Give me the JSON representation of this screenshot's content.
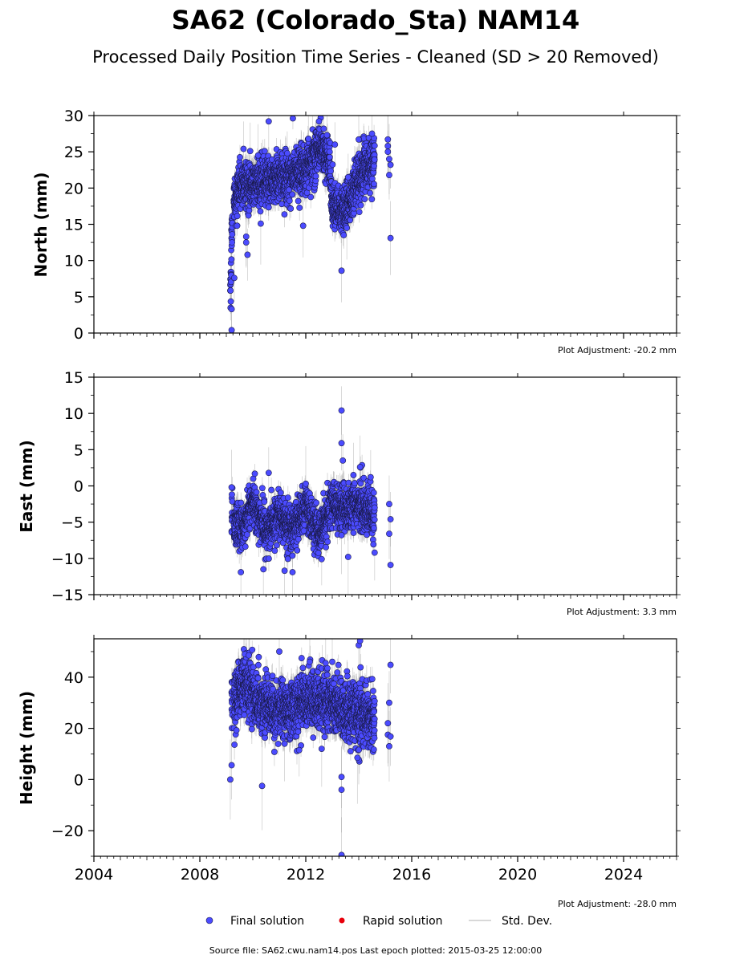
{
  "title": "SA62 (Colorado_Sta) NAM14",
  "subtitle": "Processed Daily Position Time Series - Cleaned (SD > 20 Removed)",
  "footer": "Source file: SA62.cwu.nam14.pos  Last epoch plotted: 2015-03-25 12:00:00",
  "legend": {
    "final": "Final solution",
    "rapid": "Rapid solution",
    "std": "Std. Dev.",
    "final_color": "#4b4bff",
    "rapid_color": "#e8000b",
    "std_color": "#cccccc"
  },
  "colors": {
    "point_fill": "#4b4bff",
    "point_edge": "#1a1a4a",
    "errorbar": "#999999"
  },
  "chart_data": [
    {
      "type": "scatter",
      "ylabel": "North (mm)",
      "adjustment": "Plot Adjustment: -20.2 mm",
      "xlim": [
        2004,
        2026
      ],
      "ylim": [
        0,
        30
      ],
      "yticks": [
        0,
        5,
        10,
        15,
        20,
        25,
        30
      ],
      "xticks": [
        2004,
        2008,
        2012,
        2016,
        2020,
        2024
      ],
      "show_xtick_labels": false,
      "trend": [
        [
          2009.15,
          5.5,
          1.6,
          1.3
        ],
        [
          2009.25,
          18.0,
          1.5,
          1.3
        ],
        [
          2009.5,
          20.0,
          1.5,
          1.4
        ],
        [
          2010.0,
          20.5,
          1.5,
          1.4
        ],
        [
          2010.5,
          21.0,
          1.5,
          1.4
        ],
        [
          2011.0,
          21.5,
          1.6,
          1.4
        ],
        [
          2011.5,
          22.0,
          1.6,
          1.4
        ],
        [
          2012.0,
          22.5,
          1.6,
          1.4
        ],
        [
          2012.5,
          26.0,
          1.6,
          1.4
        ],
        [
          2012.9,
          23.5,
          1.6,
          1.5
        ],
        [
          2013.0,
          17.5,
          1.6,
          1.5
        ],
        [
          2013.5,
          17.0,
          1.6,
          1.6
        ],
        [
          2013.9,
          20.5,
          1.6,
          1.6
        ],
        [
          2014.3,
          23.0,
          1.6,
          1.7
        ],
        [
          2014.6,
          24.0,
          1.6,
          1.7
        ]
      ],
      "points": [
        [
          2009.2,
          0.4
        ],
        [
          2009.2,
          3.3
        ],
        [
          2009.3,
          7.6
        ],
        [
          2009.8,
          10.8
        ],
        [
          2009.75,
          12.5
        ],
        [
          2009.75,
          13.3
        ],
        [
          2010.3,
          15.1
        ],
        [
          2010.6,
          29.2
        ],
        [
          2011.9,
          14.8
        ],
        [
          2013.35,
          8.6
        ],
        [
          2013.55,
          14.5
        ],
        [
          2014.0,
          26.7
        ],
        [
          2014.5,
          27.5
        ],
        [
          2012.5,
          29.2
        ],
        [
          2015.1,
          26.7
        ],
        [
          2015.1,
          25.8
        ],
        [
          2015.1,
          25.0
        ],
        [
          2015.15,
          24.0
        ],
        [
          2015.2,
          23.2
        ],
        [
          2015.15,
          21.8
        ],
        [
          2015.2,
          13.1
        ],
        [
          2009.65,
          25.4
        ],
        [
          2009.9,
          25.1
        ],
        [
          2010.2,
          24.5
        ],
        [
          2011.3,
          24.8
        ],
        [
          2012.1,
          26.8
        ],
        [
          2012.8,
          27.3
        ],
        [
          2013.1,
          26.0
        ],
        [
          2013.6,
          21.5
        ]
      ],
      "sd": {
        "min": 1.2,
        "max": 1.9
      }
    },
    {
      "type": "scatter",
      "ylabel": "East (mm)",
      "adjustment": "Plot Adjustment: 3.3 mm",
      "xlim": [
        2004,
        2026
      ],
      "ylim": [
        -15,
        15
      ],
      "yticks": [
        -15,
        -10,
        -5,
        0,
        5,
        10,
        15
      ],
      "xticks": [
        2004,
        2008,
        2012,
        2016,
        2020,
        2024
      ],
      "show_xtick_labels": false,
      "trend": [
        [
          2009.2,
          -4.5,
          1.5,
          1.3
        ],
        [
          2009.6,
          -6.0,
          1.5,
          1.3
        ],
        [
          2010.0,
          -2.0,
          1.5,
          1.3
        ],
        [
          2010.5,
          -6.5,
          1.5,
          1.3
        ],
        [
          2011.0,
          -4.0,
          1.5,
          1.3
        ],
        [
          2011.5,
          -6.0,
          1.5,
          1.3
        ],
        [
          2012.0,
          -3.0,
          1.5,
          1.3
        ],
        [
          2012.5,
          -6.5,
          1.5,
          1.3
        ],
        [
          2013.0,
          -2.5,
          1.5,
          1.4
        ],
        [
          2013.5,
          -3.0,
          1.6,
          1.4
        ],
        [
          2014.0,
          -2.5,
          1.6,
          1.5
        ],
        [
          2014.6,
          -4.5,
          1.6,
          1.6
        ]
      ],
      "points": [
        [
          2009.55,
          -11.9
        ],
        [
          2010.4,
          -11.5
        ],
        [
          2011.2,
          -11.7
        ],
        [
          2011.5,
          -11.9
        ],
        [
          2013.35,
          10.4
        ],
        [
          2013.35,
          5.9
        ],
        [
          2013.4,
          3.5
        ],
        [
          2013.6,
          -9.8
        ],
        [
          2013.35,
          -6.8
        ],
        [
          2014.6,
          -9.2
        ],
        [
          2015.2,
          -10.9
        ],
        [
          2015.15,
          -2.5
        ],
        [
          2015.15,
          -6.6
        ],
        [
          2015.2,
          -4.6
        ],
        [
          2010.6,
          1.8
        ],
        [
          2014.05,
          2.6
        ],
        [
          2012.6,
          -10.1
        ],
        [
          2014.45,
          1.2
        ],
        [
          2009.2,
          -0.2
        ],
        [
          2012.0,
          0.3
        ],
        [
          2013.8,
          1.5
        ]
      ],
      "sd": {
        "min": 1.2,
        "max": 1.8
      }
    },
    {
      "type": "scatter",
      "ylabel": "Height (mm)",
      "adjustment": "Plot Adjustment: -28.0 mm",
      "xlim": [
        2004,
        2026
      ],
      "ylim": [
        -30,
        55
      ],
      "yticks": [
        -20,
        0,
        20,
        40
      ],
      "xticks": [
        2004,
        2008,
        2012,
        2016,
        2020,
        2024
      ],
      "show_xtick_labels": true,
      "trend": [
        [
          2009.2,
          30.0,
          5.0,
          4.0
        ],
        [
          2009.7,
          38.0,
          5.5,
          4.0
        ],
        [
          2010.2,
          30.0,
          5.5,
          4.0
        ],
        [
          2010.8,
          28.0,
          5.5,
          4.0
        ],
        [
          2011.3,
          27.0,
          5.5,
          4.0
        ],
        [
          2011.8,
          30.0,
          5.5,
          4.0
        ],
        [
          2012.3,
          32.0,
          5.5,
          4.2
        ],
        [
          2012.8,
          30.0,
          5.5,
          4.2
        ],
        [
          2013.3,
          28.0,
          6.0,
          4.5
        ],
        [
          2013.8,
          27.0,
          6.0,
          4.6
        ],
        [
          2014.3,
          24.0,
          6.0,
          4.7
        ],
        [
          2014.6,
          24.0,
          6.0,
          4.8
        ]
      ],
      "points": [
        [
          2009.15,
          0.0
        ],
        [
          2009.2,
          5.6
        ],
        [
          2010.35,
          -2.5
        ],
        [
          2013.35,
          -4.0
        ],
        [
          2013.35,
          1.0
        ],
        [
          2013.35,
          -29.5
        ],
        [
          2014.0,
          52.5
        ],
        [
          2014.05,
          54.2
        ],
        [
          2015.2,
          44.8
        ],
        [
          2011.0,
          50.0
        ],
        [
          2009.7,
          49.0
        ],
        [
          2009.85,
          48.5
        ],
        [
          2015.15,
          30.0
        ],
        [
          2015.1,
          22.0
        ],
        [
          2015.1,
          17.5
        ],
        [
          2015.15,
          13.0
        ],
        [
          2015.2,
          16.8
        ],
        [
          2014.0,
          7.8
        ],
        [
          2013.95,
          8.5
        ],
        [
          2012.15,
          46.0
        ],
        [
          2012.75,
          45.5
        ],
        [
          2013.0,
          46.0
        ],
        [
          2011.75,
          11.5
        ],
        [
          2012.6,
          12.0
        ],
        [
          2011.2,
          14.0
        ]
      ],
      "sd": {
        "min": 3.5,
        "max": 6.0
      }
    }
  ]
}
